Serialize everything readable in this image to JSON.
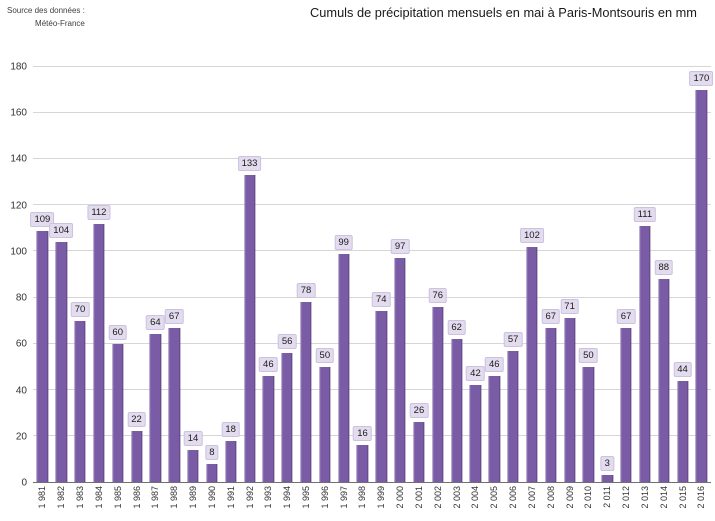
{
  "source": {
    "line1": "Source des données :",
    "line2": "Météo-France"
  },
  "title": "Cumuls de précipitation mensuels en mai à Paris-Montsouris en mm",
  "chart_data": {
    "type": "bar",
    "title": "Cumuls de précipitation mensuels en mai à Paris-Montsouris en mm",
    "categories": [
      "1 981",
      "1 982",
      "1 983",
      "1 984",
      "1 985",
      "1 986",
      "1 987",
      "1 988",
      "1 989",
      "1 990",
      "1 991",
      "1 992",
      "1 993",
      "1 994",
      "1 995",
      "1 996",
      "1 997",
      "1 998",
      "1 999",
      "2 000",
      "2 001",
      "2 002",
      "2 003",
      "2 004",
      "2 005",
      "2 006",
      "2 007",
      "2 008",
      "2 009",
      "2 010",
      "2 011",
      "2 012",
      "2 013",
      "2 014",
      "2 015",
      "2 016"
    ],
    "values": [
      109,
      104,
      70,
      112,
      60,
      22,
      64,
      67,
      14,
      8,
      18,
      133,
      46,
      56,
      78,
      50,
      99,
      16,
      74,
      97,
      26,
      76,
      62,
      42,
      46,
      57,
      102,
      67,
      71,
      50,
      3,
      67,
      111,
      88,
      44,
      170
    ],
    "xlabel": "",
    "ylabel": "",
    "ylim": [
      0,
      180
    ],
    "ytick_step": 20,
    "grid": true,
    "legend": "none",
    "data_labels": true,
    "bar_color": "#7a5ca6",
    "label_bg": "#e3dcef"
  }
}
